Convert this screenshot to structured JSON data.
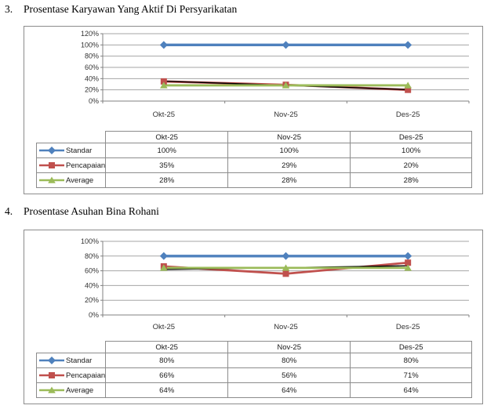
{
  "page": {
    "background": "#ffffff"
  },
  "sections": [
    {
      "number": "3.",
      "title": "Prosentase Karyawan Yang Aktif Di Persyarikatan",
      "table": {
        "col_headers": [
          "Okt-25",
          "Nov-25",
          "Des-25"
        ],
        "rows": [
          {
            "label": "Standar",
            "values": [
              "100%",
              "100%",
              "100%"
            ]
          },
          {
            "label": "Pencapaian",
            "values": [
              "35%",
              "29%",
              "20%"
            ]
          },
          {
            "label": "Average",
            "values": [
              "28%",
              "28%",
              "28%"
            ]
          }
        ]
      }
    },
    {
      "number": "4.",
      "title": "Prosentase Asuhan Bina Rohani",
      "table": {
        "col_headers": [
          "Okt-25",
          "Nov-25",
          "Des-25"
        ],
        "rows": [
          {
            "label": "Standar",
            "values": [
              "80%",
              "80%",
              "80%"
            ]
          },
          {
            "label": "Pencapaian",
            "values": [
              "66%",
              "56%",
              "71%"
            ]
          },
          {
            "label": "Average",
            "values": [
              "64%",
              "64%",
              "64%"
            ]
          }
        ]
      }
    }
  ],
  "chart_data": [
    {
      "type": "line",
      "title": "Prosentase Karyawan Yang Aktif Di Persyarikatan",
      "xlabel": "",
      "ylabel": "",
      "categories": [
        "Okt-25",
        "Nov-25",
        "Des-25"
      ],
      "series": [
        {
          "name": "Standar",
          "marker": "diamond",
          "color": "#4F81BD",
          "values": [
            100,
            100,
            100
          ]
        },
        {
          "name": "Pencapaian",
          "marker": "square",
          "color": "#C0504D",
          "values": [
            35,
            29,
            20
          ]
        },
        {
          "name": "Average",
          "marker": "triangle",
          "color": "#9BBB59",
          "values": [
            28,
            28,
            28
          ]
        }
      ],
      "trendline": {
        "color": "#000000",
        "values": [
          35.5,
          28,
          20.5
        ]
      },
      "ylim": [
        0,
        120
      ],
      "ytick_step": 20,
      "ytick_labels": [
        "0%",
        "20%",
        "40%",
        "60%",
        "80%",
        "100%",
        "120%"
      ],
      "grid": true,
      "grid_color": "#a6a6a6",
      "axis_color": "#808080",
      "legend_position": "table-left"
    },
    {
      "type": "line",
      "title": "Prosentase Asuhan Bina Rohani",
      "xlabel": "",
      "ylabel": "",
      "categories": [
        "Okt-25",
        "Nov-25",
        "Des-25"
      ],
      "series": [
        {
          "name": "Standar",
          "marker": "diamond",
          "color": "#4F81BD",
          "values": [
            80,
            80,
            80
          ]
        },
        {
          "name": "Pencapaian",
          "marker": "square",
          "color": "#C0504D",
          "values": [
            66,
            56,
            71
          ]
        },
        {
          "name": "Average",
          "marker": "triangle",
          "color": "#9BBB59",
          "values": [
            64,
            64,
            64
          ]
        }
      ],
      "trendline": {
        "color": "#000000",
        "values": [
          61.8,
          64.3,
          66.8
        ]
      },
      "ylim": [
        0,
        100
      ],
      "ytick_step": 20,
      "ytick_labels": [
        "0%",
        "20%",
        "40%",
        "60%",
        "80%",
        "100%"
      ],
      "grid": true,
      "grid_color": "#a6a6a6",
      "axis_color": "#808080",
      "legend_position": "table-left"
    }
  ]
}
